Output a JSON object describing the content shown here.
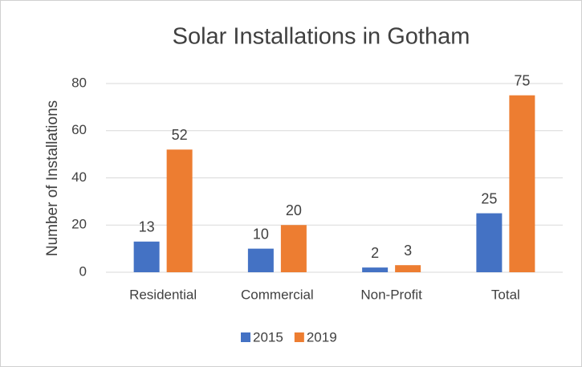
{
  "chart_data": {
    "type": "bar",
    "title": "Solar Installations in Gotham",
    "y_label": "Number of Installations",
    "categories": [
      "Residential",
      "Commercial",
      "Non-Profit",
      "Total"
    ],
    "series": [
      {
        "name": "2015",
        "color": "#4472c4",
        "values": [
          13,
          10,
          2,
          25
        ]
      },
      {
        "name": "2019",
        "color": "#ed7d31",
        "values": [
          52,
          20,
          3,
          75
        ]
      }
    ],
    "ylim": [
      0,
      80
    ],
    "yticks": [
      0,
      20,
      40,
      60,
      80
    ],
    "grid": true,
    "legend": "bottom"
  }
}
